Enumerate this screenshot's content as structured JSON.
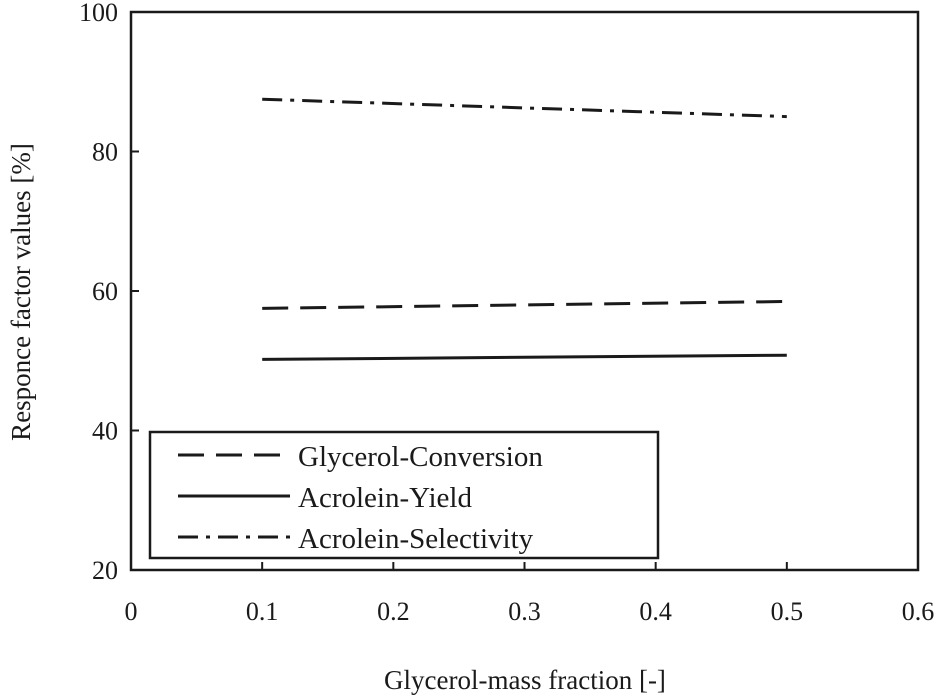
{
  "chart_data": {
    "type": "line",
    "title": "",
    "xlabel": "Glycerol-mass fraction [-]",
    "ylabel": "Responce factor values [%]",
    "xlim": [
      0,
      0.6
    ],
    "ylim": [
      20,
      100
    ],
    "xticks": [
      0,
      0.1,
      0.2,
      0.3,
      0.4,
      0.5,
      0.6
    ],
    "xtick_labels": [
      "0",
      "0.1",
      "0.2",
      "0.3",
      "0.4",
      "0.5",
      "0.6"
    ],
    "yticks": [
      20,
      40,
      60,
      80,
      100
    ],
    "ytick_labels": [
      "20",
      "40",
      "60",
      "80",
      "100"
    ],
    "grid": false,
    "legend_position": "bottom-left",
    "series": [
      {
        "name": "Glycerol-Conversion",
        "style": "dashed",
        "color": "#1a1a1a",
        "x": [
          0.1,
          0.5
        ],
        "y": [
          57.5,
          58.5
        ]
      },
      {
        "name": "Acrolein-Yield",
        "style": "solid",
        "color": "#1a1a1a",
        "x": [
          0.1,
          0.5
        ],
        "y": [
          50.2,
          50.8
        ]
      },
      {
        "name": "Acrolein-Selectivity",
        "style": "dashdot",
        "color": "#1a1a1a",
        "x": [
          0.1,
          0.5
        ],
        "y": [
          87.5,
          85.0
        ]
      }
    ]
  }
}
